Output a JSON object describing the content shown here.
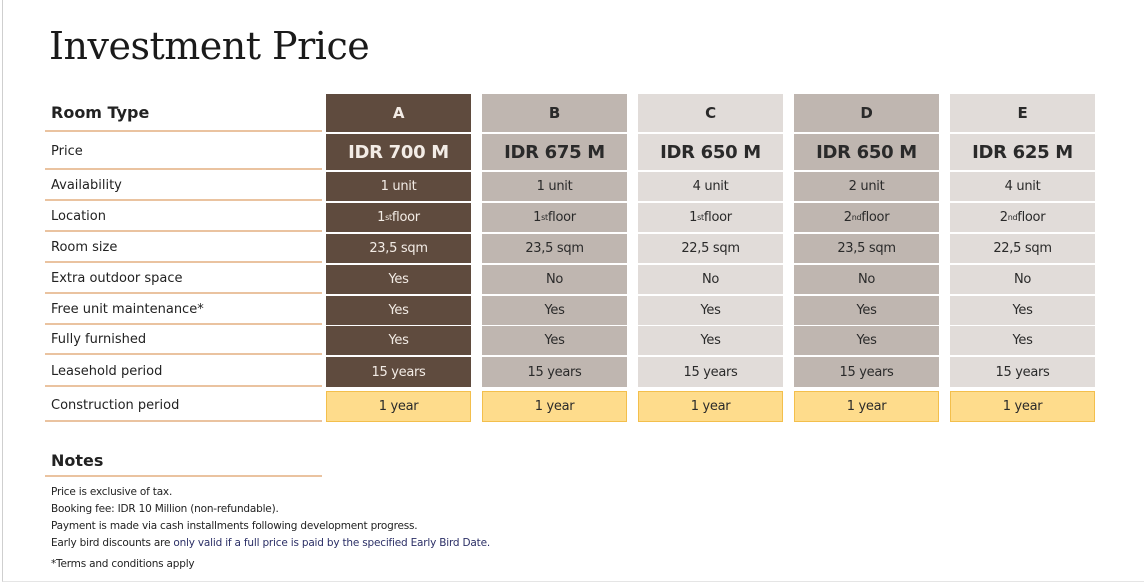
{
  "title": "Investment Price",
  "columns": [
    "A",
    "B",
    "C",
    "D",
    "E"
  ],
  "row_header_label": "Room Type",
  "rows": [
    {
      "label": "Price",
      "values": [
        "IDR 700 M",
        "IDR 675 M",
        "IDR 650 M",
        "IDR 650 M",
        "IDR 625 M"
      ]
    },
    {
      "label": "Availability",
      "values": [
        "1 unit",
        "1 unit",
        "4 unit",
        "2 unit",
        "4 unit"
      ]
    },
    {
      "label": "Location",
      "values": [
        [
          "1",
          "st",
          " floor"
        ],
        [
          "1",
          "st",
          " floor"
        ],
        [
          "1",
          "st",
          " floor"
        ],
        [
          "2",
          "nd",
          " floor"
        ],
        [
          "2",
          "nd",
          " floor"
        ]
      ]
    },
    {
      "label": "Room size",
      "values": [
        "23,5 sqm",
        "23,5 sqm",
        "22,5 sqm",
        "23,5 sqm",
        "22,5 sqm"
      ]
    },
    {
      "label": "Extra outdoor space",
      "values": [
        "Yes",
        "No",
        "No",
        "No",
        "No"
      ]
    },
    {
      "label": "Free unit maintenance*",
      "values": [
        "Yes",
        "Yes",
        "Yes",
        "Yes",
        "Yes"
      ]
    },
    {
      "label": "Fully furnished",
      "values": [
        "Yes",
        "Yes",
        "Yes",
        "Yes",
        "Yes"
      ]
    },
    {
      "label": "Leasehold period",
      "values": [
        "15 years",
        "15 years",
        "15 years",
        "15 years",
        "15 years"
      ]
    },
    {
      "label": "Construction period",
      "values": [
        "1 year",
        "1 year",
        "1 year",
        "1 year",
        "1 year"
      ]
    }
  ],
  "notes": {
    "heading": "Notes",
    "lines": [
      "Price is exclusive of tax.",
      "Booking fee: IDR 10 Million (non-refundable).",
      "Payment is made via cash installments following development progress."
    ],
    "early_bird_a": "Early bird discounts are ",
    "early_bird_b": "only valid if a full price is paid by the specified Early Bird Date.",
    "terms": "*Terms and conditions apply"
  },
  "colors": {
    "unit_a": "#5f4b3e",
    "unit_b_d": "#bfb6b0",
    "unit_c_e": "#e1dcd9",
    "construction": "#fedc8c",
    "accent_line": "#eac3a0"
  }
}
